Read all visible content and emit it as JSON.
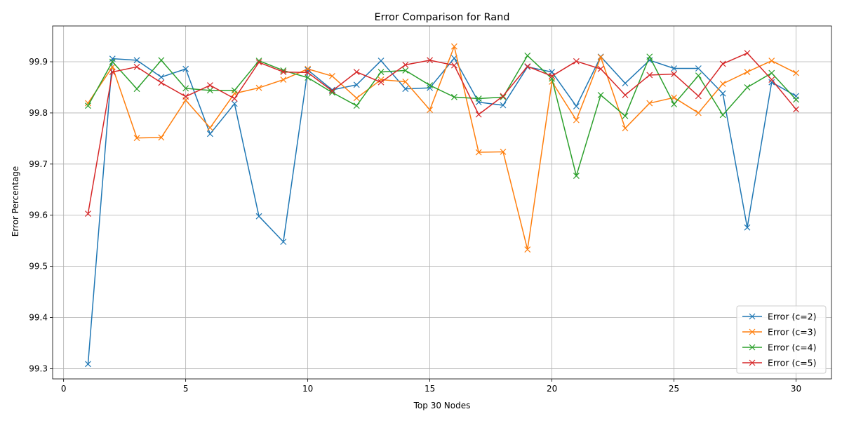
{
  "chart_data": {
    "type": "line",
    "title": "Error Comparison for Rand",
    "xlabel": "Top 30 Nodes",
    "ylabel": "Error Percentage",
    "xlim": [
      -0.45,
      31.45
    ],
    "ylim": [
      99.28,
      99.97
    ],
    "xticks": [
      0,
      5,
      10,
      15,
      20,
      25,
      30
    ],
    "yticks": [
      99.3,
      99.4,
      99.5,
      99.6,
      99.7,
      99.8,
      99.9
    ],
    "grid": true,
    "legend_position": "bottom-right",
    "marker": "x",
    "x": [
      1,
      2,
      3,
      4,
      5,
      6,
      7,
      8,
      9,
      10,
      11,
      12,
      13,
      14,
      15,
      16,
      17,
      18,
      19,
      20,
      21,
      22,
      23,
      24,
      25,
      26,
      27,
      28,
      29,
      30
    ],
    "series": [
      {
        "name": "Error (c=2)",
        "color": "#1f77b4",
        "values": [
          99.309,
          99.906,
          99.903,
          99.87,
          99.886,
          99.759,
          99.818,
          99.598,
          99.548,
          99.884,
          99.845,
          99.855,
          99.902,
          99.847,
          99.849,
          99.907,
          99.821,
          99.815,
          99.89,
          99.88,
          99.813,
          99.91,
          99.858,
          99.903,
          99.887,
          99.887,
          99.838,
          99.576,
          99.86,
          99.833
        ]
      },
      {
        "name": "Error (c=3)",
        "color": "#ff7f0e",
        "values": [
          99.819,
          99.89,
          99.751,
          99.752,
          99.825,
          99.771,
          99.838,
          99.849,
          99.865,
          99.886,
          99.872,
          99.829,
          99.865,
          99.861,
          99.806,
          99.93,
          99.723,
          99.724,
          99.533,
          99.861,
          99.786,
          99.909,
          99.77,
          99.819,
          99.83,
          99.8,
          99.857,
          99.88,
          99.902,
          99.878
        ]
      },
      {
        "name": "Error (c=4)",
        "color": "#2ca02c",
        "values": [
          99.814,
          99.9,
          99.847,
          99.903,
          99.848,
          99.844,
          99.844,
          99.902,
          99.883,
          99.869,
          99.84,
          99.814,
          99.88,
          99.883,
          99.854,
          99.831,
          99.828,
          99.831,
          99.912,
          99.867,
          99.677,
          99.835,
          99.794,
          99.91,
          99.817,
          99.873,
          99.796,
          99.85,
          99.878,
          99.826
        ]
      },
      {
        "name": "Error (c=5)",
        "color": "#d62728",
        "values": [
          99.603,
          99.88,
          99.89,
          99.859,
          99.832,
          99.854,
          99.828,
          99.899,
          99.88,
          99.879,
          99.843,
          99.88,
          99.86,
          99.894,
          99.903,
          99.893,
          99.797,
          99.833,
          99.891,
          99.872,
          99.901,
          99.886,
          99.835,
          99.874,
          99.876,
          99.833,
          99.896,
          99.917,
          99.865,
          99.807
        ]
      }
    ]
  }
}
